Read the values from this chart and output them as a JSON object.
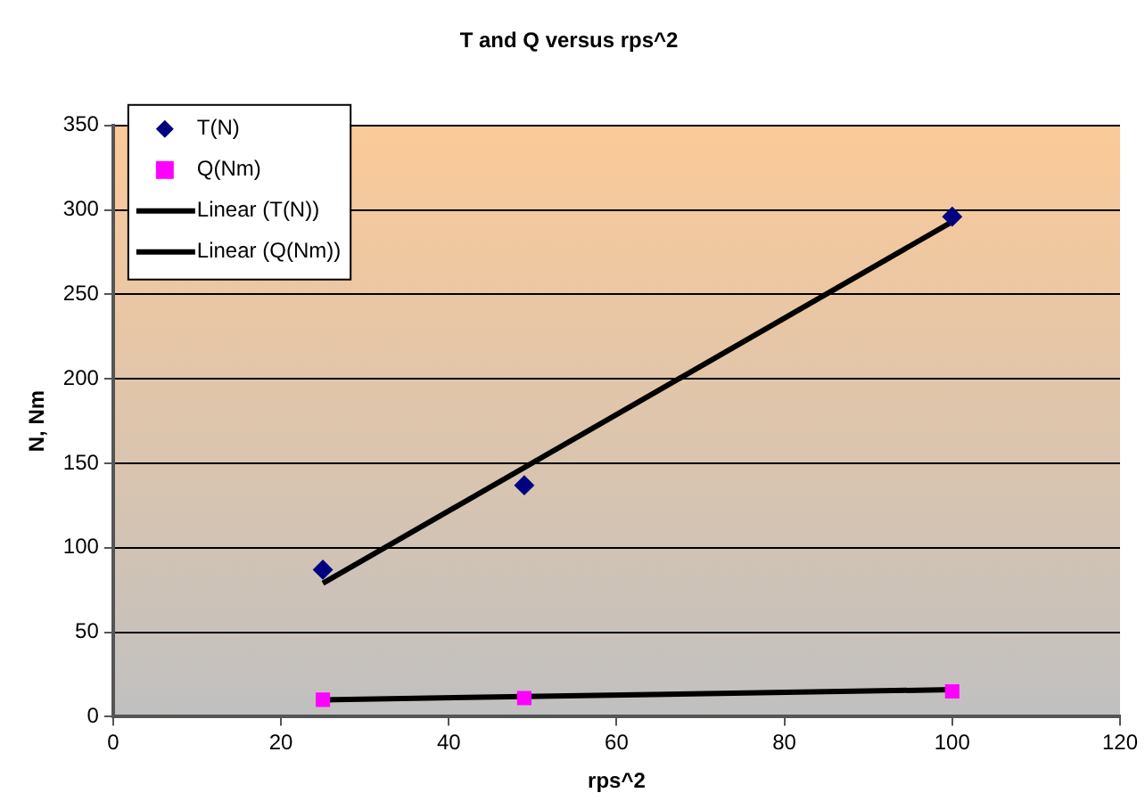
{
  "chart_data": {
    "type": "scatter",
    "title": "T and Q versus rps^2",
    "xlabel": "rps^2",
    "ylabel": "N, Nm",
    "xlim": [
      0,
      120
    ],
    "xticks": [
      0,
      20,
      40,
      60,
      80,
      100,
      120
    ],
    "ylim": [
      0,
      350
    ],
    "yticks": [
      0,
      50,
      100,
      150,
      200,
      250,
      300,
      350
    ],
    "grid": "y",
    "legend": "top left",
    "series": [
      {
        "name": "T(N)",
        "marker": "diamond",
        "color": "#000080",
        "x": [
          25,
          49,
          100
        ],
        "values": [
          87,
          137,
          296
        ]
      },
      {
        "name": "Q(Nm)",
        "marker": "square",
        "color": "#ff00ff",
        "x": [
          25,
          49,
          100
        ],
        "values": [
          10,
          11,
          15
        ]
      },
      {
        "name": "Linear (T(N))",
        "type": "line",
        "marker": "none",
        "color": "#000000",
        "x": [
          25,
          100
        ],
        "values": [
          79,
          293
        ]
      },
      {
        "name": "Linear (Q(Nm))",
        "type": "line",
        "marker": "none",
        "color": "#000000",
        "x": [
          25,
          100
        ],
        "values": [
          10,
          16
        ]
      }
    ]
  }
}
